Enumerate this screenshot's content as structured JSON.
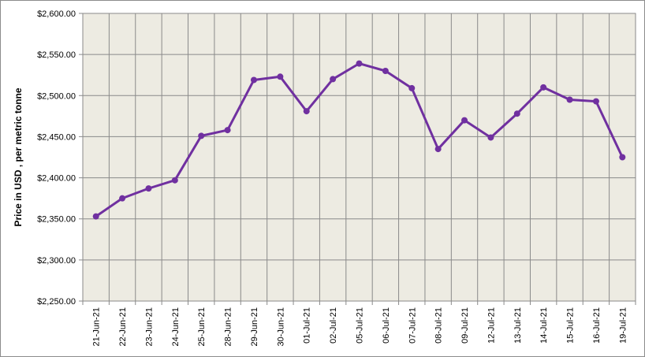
{
  "chart_data": {
    "type": "line",
    "title": "",
    "xlabel": "",
    "ylabel": "Price in USD , per metric tonne",
    "ylim": [
      2250,
      2600
    ],
    "y_tick_step": 50,
    "y_tick_labels": [
      "$2,250.00",
      "$2,300.00",
      "$2,350.00",
      "$2,400.00",
      "$2,450.00",
      "$2,500.00",
      "$2,550.00",
      "$2,600.00"
    ],
    "grid": true,
    "legend": "none",
    "x": [
      "21-Jun-21",
      "22-Jun-21",
      "23-Jun-21",
      "24-Jun-21",
      "25-Jun-21",
      "28-Jun-21",
      "29-Jun-21",
      "30-Jun-21",
      "01-Jul-21",
      "02-Jul-21",
      "05-Jul-21",
      "06-Jul-21",
      "07-Jul-21",
      "08-Jul-21",
      "09-Jul-21",
      "12-Jul-21",
      "13-Jul-21",
      "14-Jul-21",
      "15-Jul-21",
      "16-Jul-21",
      "19-Jul-21"
    ],
    "series": [
      {
        "values": [
          2353,
          2375,
          2387,
          2397,
          2451,
          2458,
          2519,
          2523,
          2481,
          2520,
          2539,
          2530,
          2509,
          2435,
          2470,
          2449,
          2478,
          2510,
          2495,
          2493,
          2425
        ]
      }
    ]
  },
  "colors": {
    "plot_background": "#edebe2",
    "grid": "#8a8a8a",
    "line": "#7030a0",
    "frame": "#8c8c8c"
  }
}
